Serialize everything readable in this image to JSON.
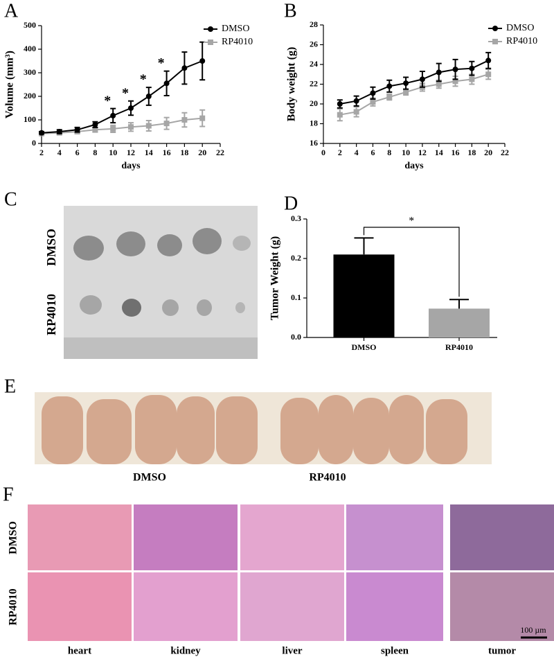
{
  "panel_labels": [
    "A",
    "B",
    "C",
    "D",
    "E",
    "F"
  ],
  "chart_data": [
    {
      "type": "line",
      "xlabel": "days",
      "ylabel": "Volume (mm³)",
      "x": [
        2,
        4,
        6,
        8,
        10,
        12,
        14,
        16,
        18,
        20
      ],
      "series": [
        {
          "name": "DMSO",
          "color": "#000000",
          "marker": "circle",
          "values": [
            45,
            50,
            58,
            80,
            118,
            150,
            200,
            255,
            320,
            350
          ],
          "errors": [
            5,
            8,
            10,
            12,
            30,
            30,
            38,
            52,
            68,
            80
          ]
        },
        {
          "name": "RP4010",
          "color": "#a6a6a6",
          "marker": "square",
          "values": [
            42,
            45,
            50,
            58,
            62,
            70,
            75,
            85,
            100,
            107
          ],
          "errors": [
            5,
            6,
            8,
            10,
            15,
            18,
            22,
            25,
            30,
            35
          ]
        }
      ],
      "xlim": [
        2,
        22
      ],
      "xticks": [
        2,
        4,
        6,
        8,
        10,
        12,
        14,
        16,
        18,
        20,
        22
      ],
      "ylim": [
        0,
        500
      ],
      "yticks": [
        0,
        100,
        200,
        300,
        400,
        500
      ],
      "legend": "upper right",
      "annotations": [
        "*",
        "*",
        "*",
        "*"
      ]
    },
    {
      "type": "line",
      "xlabel": "days",
      "ylabel": "Body weight (g)",
      "x": [
        2,
        4,
        6,
        8,
        10,
        12,
        14,
        16,
        18,
        20
      ],
      "series": [
        {
          "name": "DMSO",
          "color": "#000000",
          "marker": "circle",
          "values": [
            20.0,
            20.3,
            21.1,
            21.8,
            22.1,
            22.5,
            23.2,
            23.5,
            23.6,
            24.4
          ],
          "errors": [
            0.4,
            0.5,
            0.6,
            0.6,
            0.6,
            0.8,
            0.9,
            1.0,
            0.7,
            0.8
          ]
        },
        {
          "name": "RP4010",
          "color": "#a6a6a6",
          "marker": "square",
          "values": [
            18.9,
            19.2,
            20.2,
            20.7,
            21.2,
            21.7,
            22.0,
            22.3,
            22.5,
            23.0
          ],
          "errors": [
            0.6,
            0.5,
            0.4,
            0.3,
            0.3,
            0.4,
            0.4,
            0.5,
            0.5,
            0.5
          ]
        }
      ],
      "xlim": [
        0,
        22
      ],
      "xticks": [
        0,
        2,
        4,
        6,
        8,
        10,
        12,
        14,
        16,
        18,
        20,
        22
      ],
      "ylim": [
        16,
        28
      ],
      "yticks": [
        16,
        18,
        20,
        22,
        24,
        26,
        28
      ],
      "legend": "upper right"
    },
    {
      "type": "bar",
      "ylabel": "Tumor Weight (g)",
      "categories": [
        "DMSO",
        "RP4010"
      ],
      "values": [
        0.21,
        0.073
      ],
      "errors": [
        0.042,
        0.023
      ],
      "colors": [
        "#000000",
        "#a6a6a6"
      ],
      "ylim": [
        0,
        0.3
      ],
      "yticks": [
        {
          "value": 0,
          "label": "0.0"
        },
        0.1,
        0.2,
        0.3
      ],
      "annotations": [
        "*"
      ]
    }
  ],
  "photo_c": {
    "row_labels": [
      "DMSO",
      "RP4010"
    ]
  },
  "photo_e": {
    "group_labels": [
      "DMSO",
      "RP4010"
    ]
  },
  "photo_f": {
    "row_labels": [
      "DMSO",
      "RP4010"
    ],
    "column_labels": [
      "heart",
      "kidney",
      "liver",
      "spleen",
      "tumor"
    ],
    "scale_label": "100 µm"
  }
}
